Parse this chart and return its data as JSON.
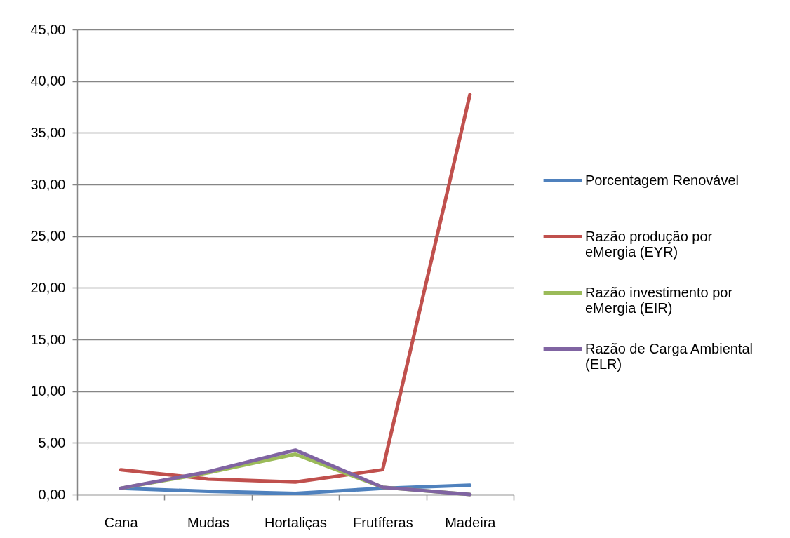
{
  "chart_data": {
    "type": "line",
    "categories": [
      "Cana",
      "Mudas",
      "Hortaliças",
      "Frutíferas",
      "Madeira"
    ],
    "series": [
      {
        "name": "Porcentagem Renovável",
        "color": "#4f81bd",
        "values": [
          0.6,
          0.3,
          0.1,
          0.6,
          0.9
        ]
      },
      {
        "name": "Razão produção por eMergia (EYR)",
        "color": "#c0504d",
        "values": [
          2.4,
          1.5,
          1.2,
          2.4,
          38.7
        ]
      },
      {
        "name": "Razão investimento por eMergia (EIR)",
        "color": "#9bbb59",
        "values": [
          0.6,
          2.1,
          3.9,
          0.7,
          0.0
        ]
      },
      {
        "name": "Razão de Carga Ambiental (ELR)",
        "color": "#8064a2",
        "values": [
          0.6,
          2.2,
          4.3,
          0.7,
          0.0
        ]
      }
    ],
    "ylim": [
      0,
      45
    ],
    "yticks": [
      {
        "value": 0,
        "label": "0,00"
      },
      {
        "value": 5,
        "label": "5,00"
      },
      {
        "value": 10,
        "label": "10,00"
      },
      {
        "value": 15,
        "label": "15,00"
      },
      {
        "value": 20,
        "label": "20,00"
      },
      {
        "value": 25,
        "label": "25,00"
      },
      {
        "value": 30,
        "label": "30,00"
      },
      {
        "value": 35,
        "label": "35,00"
      },
      {
        "value": 40,
        "label": "40,00"
      },
      {
        "value": 45,
        "label": "45,00"
      }
    ],
    "grid": "y",
    "legend": "right",
    "line_style": "solid"
  }
}
